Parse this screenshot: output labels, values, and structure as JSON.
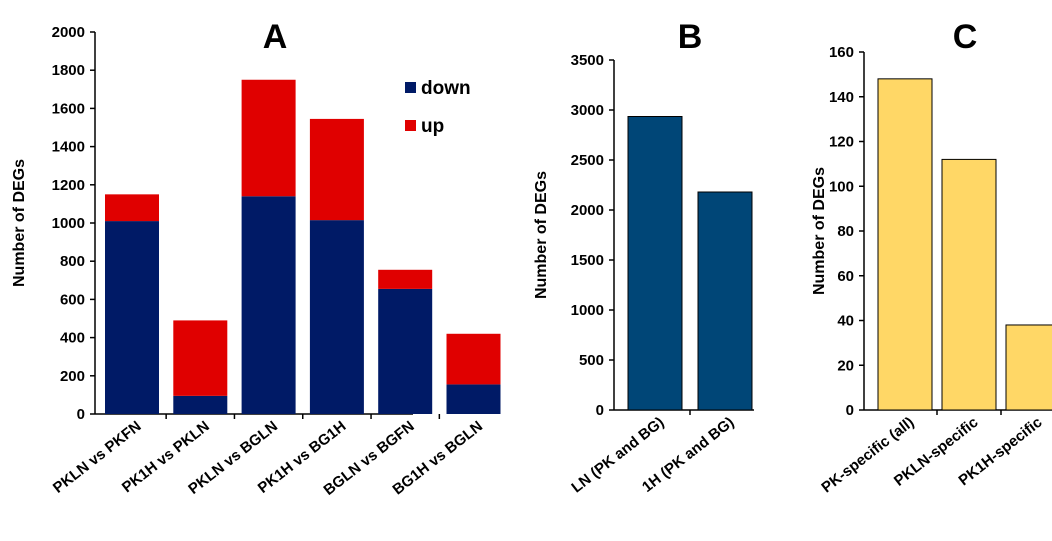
{
  "figure": {
    "colors": {
      "down": "#001a66",
      "up": "#e00000",
      "panel_b_bar": "#004677",
      "panel_c_bar": "#ffd766",
      "axis": "#000000"
    }
  },
  "chart_data": [
    {
      "panel": "A",
      "type": "bar",
      "stacked": true,
      "title": "",
      "xlabel": "",
      "ylabel": "Number of DEGs",
      "ylim": [
        0,
        2000
      ],
      "yticks": [
        0,
        200,
        400,
        600,
        800,
        1000,
        1200,
        1400,
        1600,
        1800,
        2000
      ],
      "categories": [
        "PKLN vs PKFN",
        "PK1H vs PKLN",
        "PKLN vs BGLN",
        "PK1H vs BG1H",
        "BGLN vs BGFN",
        "BG1H vs BGLN"
      ],
      "series": [
        {
          "name": "down",
          "color": "#001a66",
          "values": [
            1010,
            95,
            1140,
            1015,
            655,
            155
          ]
        },
        {
          "name": "up",
          "color": "#e00000",
          "values": [
            140,
            395,
            610,
            530,
            100,
            265
          ]
        }
      ],
      "legend_position": "top-right",
      "grid": false
    },
    {
      "panel": "B",
      "type": "bar",
      "title": "",
      "xlabel": "",
      "ylabel": "Number of DEGs",
      "ylim": [
        0,
        3500
      ],
      "yticks": [
        0,
        500,
        1000,
        1500,
        2000,
        2500,
        3000,
        3500
      ],
      "categories": [
        "LN (PK and BG)",
        "1H (PK and BG)"
      ],
      "values": [
        2935,
        2180
      ],
      "color": "#004677",
      "grid": false
    },
    {
      "panel": "C",
      "type": "bar",
      "title": "",
      "xlabel": "",
      "ylabel": "Number of DEGs",
      "ylim": [
        0,
        160
      ],
      "yticks": [
        0,
        20,
        40,
        60,
        80,
        100,
        120,
        140,
        160
      ],
      "categories": [
        "PK-specific (all)",
        "PKLN-specific",
        "PK1H-specific"
      ],
      "values": [
        148,
        112,
        38
      ],
      "color": "#ffd766",
      "grid": false
    }
  ]
}
